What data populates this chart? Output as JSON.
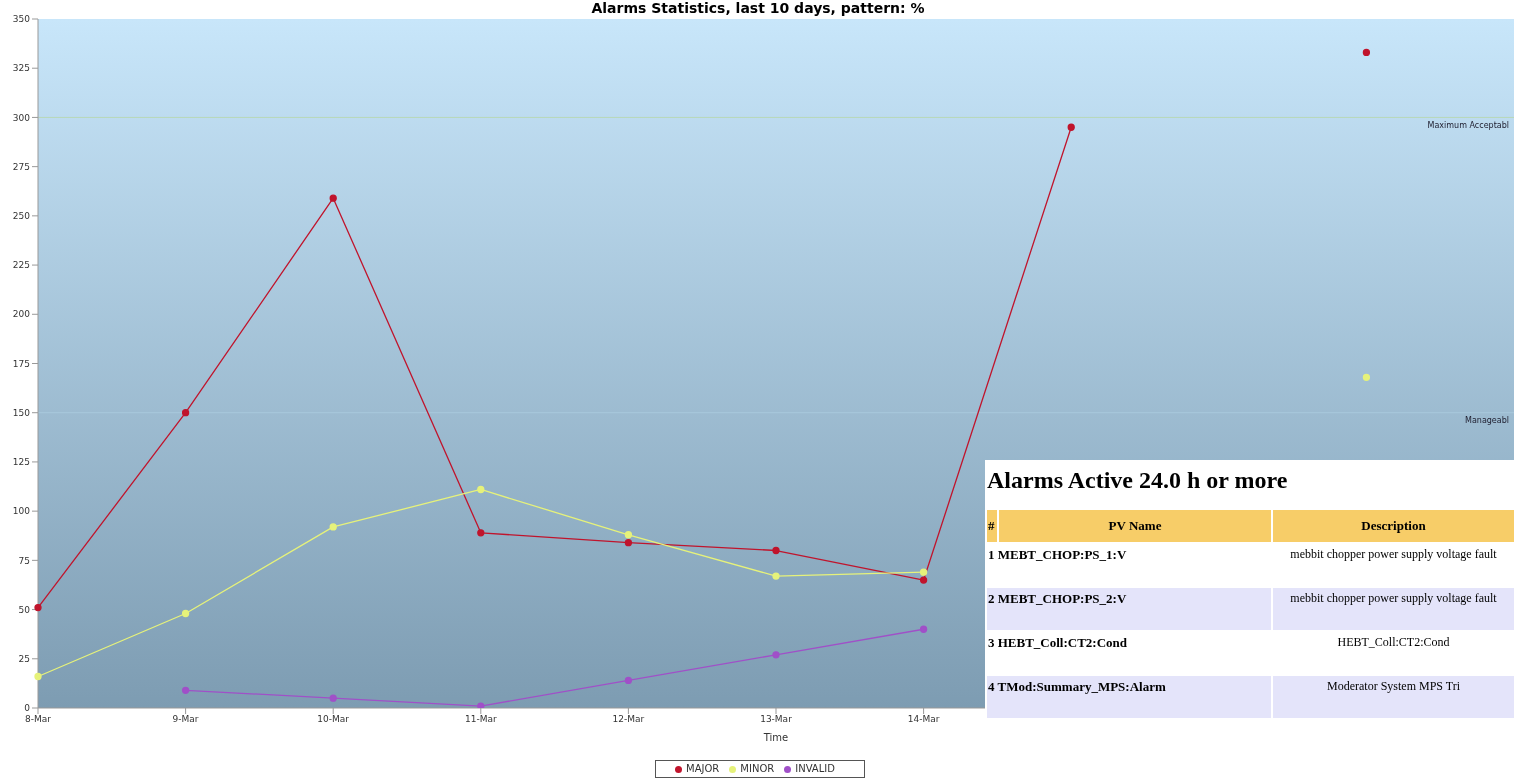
{
  "chart_data": [
    {
      "type": "line",
      "title": "Alarms Statistics, last 10 days, pattern: %",
      "xlabel": "Time",
      "categories": [
        "8-Mar",
        "9-Mar",
        "10-Mar",
        "11-Mar",
        "12-Mar",
        "13-Mar",
        "14-Mar",
        null,
        null,
        null,
        null
      ],
      "series": [
        {
          "name": "MAJOR",
          "color": "#c0142c",
          "values": [
            51,
            150,
            259,
            89,
            84,
            80,
            65,
            295,
            null,
            333,
            null
          ]
        },
        {
          "name": "MINOR",
          "color": "#e6f27a",
          "values": [
            16,
            48,
            92,
            111,
            88,
            67,
            69,
            null,
            null,
            168,
            null
          ]
        },
        {
          "name": "INVALID",
          "color": "#a050c8",
          "values": [
            null,
            9,
            5,
            1,
            14,
            27,
            40,
            null,
            null,
            null,
            null
          ]
        }
      ],
      "ylim": [
        0,
        350
      ],
      "yticks": [
        0,
        25,
        50,
        75,
        100,
        125,
        150,
        175,
        200,
        225,
        250,
        275,
        300,
        325,
        350
      ],
      "ref_lines": [
        {
          "axis": "y",
          "value": 300,
          "label": "Maximum Acceptabl",
          "color": "#b8d8b8"
        },
        {
          "axis": "y",
          "value": 150,
          "label": "Manageabl"
        }
      ],
      "grid": false,
      "legend": "bottom",
      "marker": "circle",
      "line_style": "solid"
    },
    {
      "type": "other",
      "title": "Alarms Active 24.0 h or more",
      "annotations": [
        "#",
        "PV Name",
        "Description",
        "1 MEBT_CHOP:PS_1:V",
        "mebbit chopper power supply voltage fault",
        "2 MEBT_CHOP:PS_2:V",
        "mebbit chopper power supply voltage fault",
        "3 HEBT_Coll:CT2:Cond",
        "HEBT_Coll:CT2:Cond",
        "4 TMod:Summary_MPS:Alarm",
        "Moderator System MPS Tri"
      ]
    }
  ]
}
